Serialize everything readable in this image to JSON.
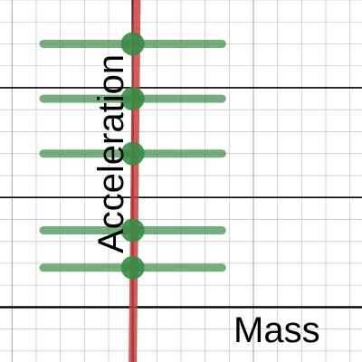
{
  "chart_data": {
    "type": "scatter",
    "title": "",
    "xlabel": "Mass",
    "ylabel": "Acceleration",
    "grid": true,
    "xlim": [
      -0.55,
      0.95
    ],
    "ylim": [
      -0.25,
      1.4
    ],
    "points": [
      {
        "x": 0.0,
        "y": 1.2,
        "xerr": 0.37
      },
      {
        "x": 0.0,
        "y": 0.95,
        "xerr": 0.37
      },
      {
        "x": 0.0,
        "y": 0.7,
        "xerr": 0.37
      },
      {
        "x": 0.0,
        "y": 0.35,
        "xerr": 0.37
      },
      {
        "x": 0.0,
        "y": 0.18,
        "xerr": 0.37
      }
    ],
    "fit_line": {
      "x": [
        0.0,
        0.016
      ],
      "y": [
        -0.25,
        1.4
      ]
    },
    "colors": {
      "points": "#388c46",
      "error_bars": "#388c46",
      "fit_line": "#c74440",
      "grid": "#aaaaaa"
    }
  }
}
